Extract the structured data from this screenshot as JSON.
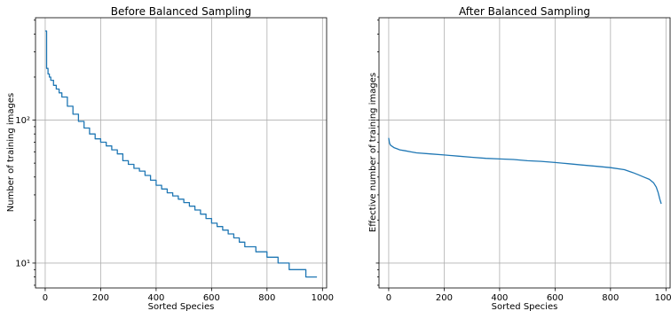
{
  "chart_data": [
    {
      "type": "line",
      "title": "Before Balanced Sampling",
      "xlabel": "Sorted Species",
      "ylabel": "Number of training images",
      "yscale": "log",
      "xlim": [
        -35,
        1015
      ],
      "ylim": [
        6.7,
        520
      ],
      "xticks": [
        0,
        200,
        400,
        600,
        800,
        1000
      ],
      "xtick_labels": [
        "0",
        "200",
        "400",
        "600",
        "800",
        "1000"
      ],
      "yticks": [
        10,
        100
      ],
      "ytick_labels": [
        "10¹",
        "10²"
      ],
      "grid": true,
      "color": "#1f77b4",
      "series": [
        {
          "x": [
            0,
            5,
            10,
            15,
            20,
            30,
            40,
            50,
            60,
            80,
            100,
            120,
            140,
            160,
            180,
            200,
            220,
            240,
            260,
            280,
            300,
            320,
            340,
            360,
            380,
            400,
            420,
            440,
            460,
            480,
            500,
            520,
            540,
            560,
            580,
            600,
            620,
            640,
            660,
            680,
            700,
            720,
            740,
            760,
            780,
            800,
            820,
            840,
            860,
            880,
            900,
            920,
            940,
            960,
            980
          ],
          "y": [
            420,
            230,
            210,
            200,
            190,
            175,
            165,
            155,
            145,
            125,
            110,
            98,
            88,
            80,
            74,
            70,
            66,
            62,
            58,
            52,
            49,
            46,
            44,
            41,
            38,
            35,
            33,
            31,
            29.5,
            28,
            26.5,
            25,
            23.5,
            22,
            20.5,
            19,
            18,
            17,
            16,
            15,
            14,
            13,
            13,
            12,
            12,
            11,
            11,
            10,
            10,
            9,
            9,
            9,
            8,
            8,
            8
          ]
        }
      ]
    },
    {
      "type": "line",
      "title": "After Balanced Sampling",
      "xlabel": "Sorted Species",
      "ylabel": "Effective number of training images",
      "yscale": "log",
      "xlim": [
        -35,
        1015
      ],
      "ylim": [
        6.7,
        520
      ],
      "xticks": [
        0,
        200,
        400,
        600,
        800,
        1000
      ],
      "xtick_labels": [
        "0",
        "200",
        "400",
        "600",
        "800",
        "1000"
      ],
      "yticks": [
        10,
        100
      ],
      "ytick_labels": [
        "",
        ""
      ],
      "grid": true,
      "color": "#1f77b4",
      "series": [
        {
          "x": [
            0,
            3,
            6,
            10,
            15,
            20,
            30,
            40,
            60,
            80,
            100,
            150,
            200,
            250,
            300,
            350,
            400,
            450,
            500,
            550,
            600,
            650,
            700,
            750,
            800,
            850,
            880,
            900,
            920,
            940,
            955,
            965,
            972,
            978,
            983
          ],
          "y": [
            75,
            69,
            67,
            66,
            65,
            64,
            63,
            62,
            61,
            60,
            59,
            58,
            57,
            56,
            55,
            54,
            53.5,
            53,
            52,
            51.5,
            50.5,
            49.5,
            48.5,
            47.5,
            46.5,
            45,
            43,
            41.5,
            40,
            38.5,
            36.5,
            34,
            31,
            28,
            26
          ]
        }
      ]
    }
  ]
}
